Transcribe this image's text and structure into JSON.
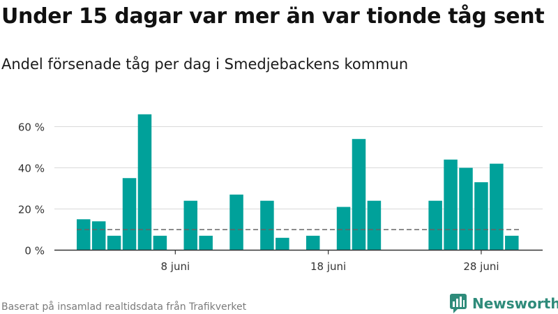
{
  "title": "Under 15 dagar var mer än var tionde tåg sent",
  "subtitle": "Andel försenade tåg per dag i Smedjebackens kommun",
  "footer": "Baserat på insamlad realtidsdata från Trafikverket",
  "brand": {
    "name": "Newsworthy",
    "icon": "bar-chart-speech-bubble-icon",
    "color": "#2e8b7a"
  },
  "chart_data": {
    "type": "bar",
    "x_tick_labels": [
      "8 juni",
      "18 juni",
      "28 juni"
    ],
    "y_tick_labels": [
      "0 %",
      "20 %",
      "40 %",
      "60 %"
    ],
    "ylim": [
      0,
      70
    ],
    "grid": true,
    "bar_color": "#00a19a",
    "reference_line": {
      "value": 10,
      "style": "dashed",
      "color": "#666666"
    },
    "x": [
      "2 juni",
      "3 juni",
      "4 juni",
      "5 juni",
      "6 juni",
      "7 juni",
      "8 juni",
      "9 juni",
      "10 juni",
      "11 juni",
      "12 juni",
      "13 juni",
      "14 juni",
      "15 juni",
      "16 juni",
      "17 juni",
      "18 juni",
      "19 juni",
      "20 juni",
      "21 juni",
      "22 juni",
      "23 juni",
      "24 juni",
      "25 juni",
      "26 juni",
      "27 juni",
      "28 juni",
      "29 juni",
      "30 juni"
    ],
    "values": [
      15,
      14,
      7,
      35,
      66,
      7,
      null,
      24,
      7,
      null,
      27,
      null,
      24,
      6,
      null,
      7,
      null,
      21,
      54,
      24,
      null,
      null,
      null,
      24,
      44,
      40,
      33,
      42,
      7
    ]
  }
}
